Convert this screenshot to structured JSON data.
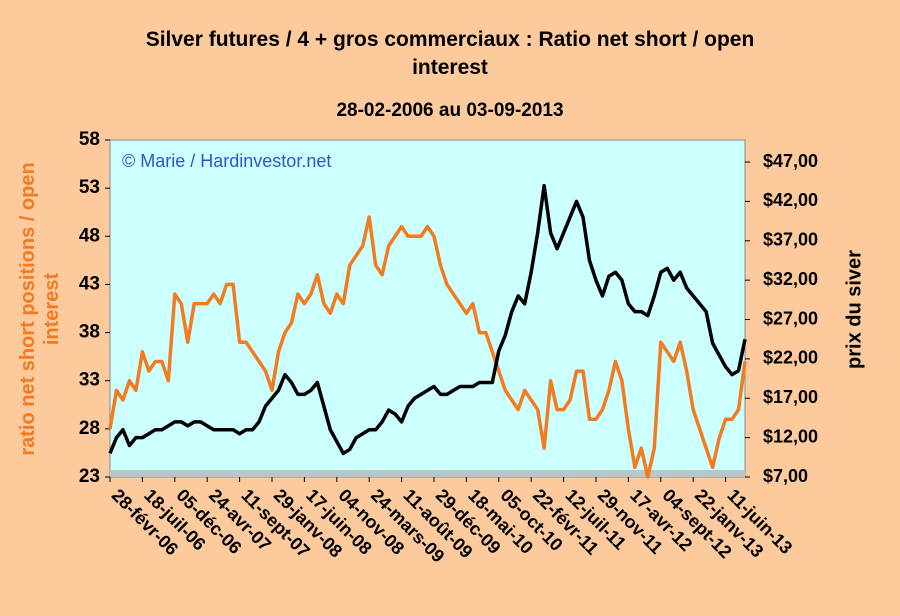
{
  "chart_data": {
    "type": "line",
    "title": "Silver futures  / 4 + gros commerciaux : Ratio net short / open interest",
    "subtitle": "28-02-2006 au 03-09-2013",
    "annotation": "© Marie / Hardinvestor.net",
    "y_label": "ratio  net short positions / open interest",
    "y2_label": "prix du siver",
    "categories": [
      "28-févr-06",
      null,
      null,
      null,
      null,
      "18-juil-06",
      null,
      null,
      null,
      null,
      "05-déc-06",
      null,
      null,
      null,
      null,
      "24-avr-07",
      null,
      null,
      null,
      null,
      "11-sept-07",
      null,
      null,
      null,
      null,
      "29-janv-08",
      null,
      null,
      null,
      null,
      "17-juin-08",
      null,
      null,
      null,
      null,
      "04-nov-08",
      null,
      null,
      null,
      null,
      "24-mars-09",
      null,
      null,
      null,
      null,
      "11-août-09",
      null,
      null,
      null,
      null,
      "29-déc-09",
      null,
      null,
      null,
      null,
      "18-mai-10",
      null,
      null,
      null,
      null,
      "05-oct-10",
      null,
      null,
      null,
      null,
      "22-févr-11",
      null,
      null,
      null,
      null,
      "12-juil-11",
      null,
      null,
      null,
      null,
      "29-nov-11",
      null,
      null,
      null,
      null,
      "17-avr-12",
      null,
      null,
      null,
      null,
      "04-sept-12",
      null,
      null,
      null,
      null,
      "22-janv-13",
      null,
      null,
      null,
      null,
      "11-juin-13",
      null,
      null,
      null
    ],
    "series": [
      {
        "color": "#f47a20",
        "values": [
          28,
          32,
          31,
          33,
          32,
          36,
          34,
          35,
          35,
          33,
          42,
          41,
          37,
          41,
          41,
          41,
          42,
          41,
          43,
          43,
          37,
          37,
          36,
          35,
          34,
          32,
          36,
          38,
          39,
          42,
          41,
          42,
          44,
          41,
          40,
          42,
          41,
          45,
          46,
          47,
          50,
          45,
          44,
          47,
          48,
          49,
          48,
          48,
          48,
          49,
          48,
          45,
          43,
          42,
          41,
          40,
          41,
          38,
          38,
          36,
          34,
          32,
          31,
          30,
          32,
          31,
          30,
          26,
          33,
          30,
          30,
          31,
          34,
          34,
          29,
          29,
          30,
          32,
          35,
          33,
          28,
          24,
          26,
          23,
          26,
          37,
          36,
          35,
          37,
          34,
          30,
          28,
          26,
          24,
          27,
          29,
          29,
          30,
          35
        ]
      },
      {
        "color": "#000000",
        "axis": "y2",
        "values": [
          10,
          12,
          13,
          11,
          12,
          12,
          12.5,
          13,
          13,
          13.5,
          14,
          14,
          13.5,
          14,
          14,
          13.5,
          13,
          13,
          13,
          13,
          12.5,
          13,
          13,
          14,
          16,
          17,
          18,
          20,
          19,
          17.5,
          17.5,
          18,
          19,
          16,
          13,
          11.5,
          10,
          10.5,
          12,
          12.5,
          13,
          13,
          14,
          15.5,
          15,
          14,
          16,
          17,
          17.5,
          18,
          18.5,
          17.5,
          17.5,
          18,
          18.5,
          18.5,
          18.5,
          19,
          19,
          19,
          23,
          25,
          28,
          30,
          29,
          33,
          38,
          44,
          38,
          36,
          38,
          40,
          42,
          40,
          34.5,
          32,
          30,
          32.5,
          33,
          32,
          29,
          28,
          28,
          27.5,
          30,
          33,
          33.5,
          32,
          33,
          31,
          30,
          29,
          28,
          24,
          22.5,
          21,
          20,
          20.5,
          24.5
        ]
      }
    ],
    "ylim": [
      23,
      58
    ],
    "yticks": [
      23,
      28,
      33,
      38,
      43,
      48,
      53,
      58
    ],
    "y2lim": [
      7,
      49.8
    ],
    "y2ticks": [
      {
        "value": 7,
        "label": "$7,00"
      },
      {
        "value": 12,
        "label": "$12,00"
      },
      {
        "value": 17,
        "label": "$17,00"
      },
      {
        "value": 22,
        "label": "$22,00"
      },
      {
        "value": 27,
        "label": "$27,00"
      },
      {
        "value": 32,
        "label": "$32,00"
      },
      {
        "value": 37,
        "label": "$37,00"
      },
      {
        "value": 42,
        "label": "$42,00"
      },
      {
        "value": 47,
        "label": "$47,00"
      }
    ],
    "y_label_color": "#f47a20",
    "plot_background": "#ccffff"
  }
}
